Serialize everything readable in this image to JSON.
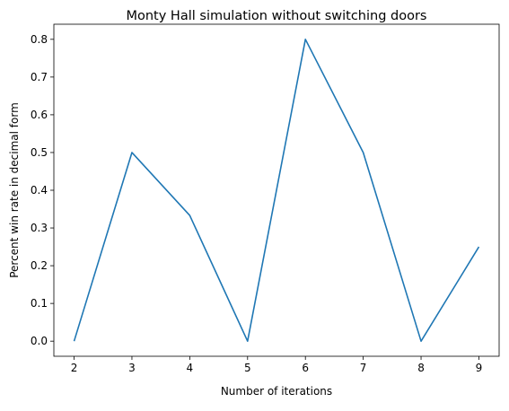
{
  "chart_data": {
    "type": "line",
    "title": "Monty Hall simulation without switching doors",
    "xlabel": "Number of iterations",
    "ylabel": "Percent win rate in decimal form",
    "x": [
      2,
      3,
      4,
      5,
      6,
      7,
      8,
      9
    ],
    "y": [
      0.0,
      0.5,
      0.3333,
      0.0,
      0.8,
      0.5,
      0.0,
      0.25
    ],
    "xlim": [
      1.65,
      9.35
    ],
    "ylim": [
      -0.04,
      0.84
    ],
    "xticks": [
      2,
      3,
      4,
      5,
      6,
      7,
      8,
      9
    ],
    "xtick_labels": [
      "2",
      "3",
      "4",
      "5",
      "6",
      "7",
      "8",
      "9"
    ],
    "yticks": [
      0.0,
      0.1,
      0.2,
      0.3,
      0.4,
      0.5,
      0.6,
      0.7,
      0.8
    ],
    "ytick_labels": [
      "0.0",
      "0.1",
      "0.2",
      "0.3",
      "0.4",
      "0.5",
      "0.6",
      "0.7",
      "0.8"
    ],
    "grid": false,
    "line_color": "#1f77b4"
  }
}
